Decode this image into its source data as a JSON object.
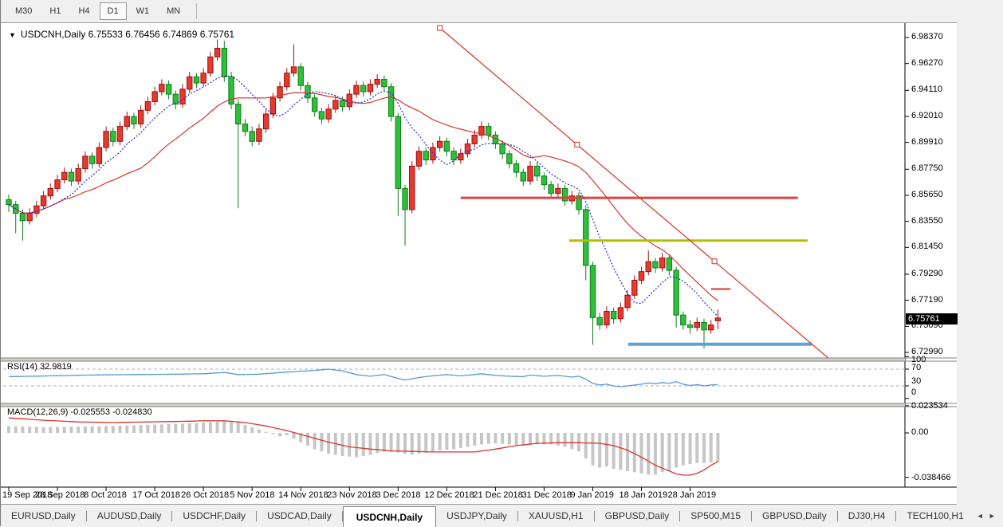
{
  "toolbar": {
    "items": [
      {
        "label": "M30",
        "active": false
      },
      {
        "label": "H1",
        "active": false
      },
      {
        "label": "H4",
        "active": false
      },
      {
        "label": "D1",
        "active": true
      },
      {
        "label": "W1",
        "active": false
      },
      {
        "label": "MN",
        "active": false
      }
    ]
  },
  "chart": {
    "title": "USDCNH,Daily  6.75533 6.76456 6.74869 6.75761",
    "dropdown_icon": "▼",
    "price_axis": {
      "labels": [
        6.9837,
        6.9627,
        6.9411,
        6.9201,
        6.8991,
        6.8775,
        6.8565,
        6.8355,
        6.8145,
        6.7929,
        6.7719,
        6.7509,
        6.7299
      ],
      "current": "6.75761"
    },
    "objects": {
      "trendline": {
        "from_day": 62,
        "from_price": 6.9914,
        "to_day": 101.5,
        "to_price": 6.8033,
        "ray": true
      },
      "hlines": [
        {
          "price": 6.8545,
          "from_day": 65,
          "to_day": 113.5,
          "color": "#e14040",
          "width": 3
        },
        {
          "price": 6.82,
          "from_day": 80.6,
          "to_day": 114.9,
          "color": "#b2bf00",
          "width": 3
        },
        {
          "price": 6.7365,
          "from_day": 89.1,
          "to_day": 115.5,
          "color": "#5aa2d8",
          "width": 4
        },
        {
          "price": 6.781,
          "from_day": 101.0,
          "to_day": 103.8,
          "color": "#d8342c",
          "width": 2
        }
      ]
    }
  },
  "panels": {
    "rsi": {
      "label": "RSI(14) 32.9819",
      "value": 32.9819,
      "axis": [
        100,
        70,
        30,
        0
      ]
    },
    "macd": {
      "label": "MACD(12,26,9) -0.025553 -0.024830",
      "value": -0.025553,
      "signal_value": -0.02483,
      "axis": [
        "0.023534",
        "0.00",
        "-0.038466"
      ]
    }
  },
  "chart_data": {
    "type": "candlestick",
    "symbol": "USDCNH",
    "timeframe": "Daily",
    "title": "USDCNH Daily with RSI(14) and MACD(12,26,9)",
    "price_range": [
      6.7299,
      6.9837
    ],
    "x_tick_labels": [
      "19 Sep 2018",
      "28 Sep 2018",
      "8 Oct 2018",
      "17 Oct 2018",
      "26 Oct 2018",
      "5 Nov 2018",
      "14 Nov 2018",
      "23 Nov 2018",
      "3 Dec 2018",
      "12 Dec 2018",
      "21 Dec 2018",
      "31 Dec 2018",
      "9 Jan 2019",
      "18 Jan 2019",
      "28 Jan 2019"
    ],
    "candles_per_tick": 7,
    "ohlc": [
      [
        6.853,
        6.857,
        6.843,
        6.849
      ],
      [
        6.849,
        6.852,
        6.826,
        6.842
      ],
      [
        6.842,
        6.845,
        6.82,
        6.836
      ],
      [
        6.836,
        6.846,
        6.833,
        6.842
      ],
      [
        6.842,
        6.852,
        6.839,
        6.848
      ],
      [
        6.848,
        6.86,
        6.845,
        6.856
      ],
      [
        6.856,
        6.866,
        6.853,
        6.862
      ],
      [
        6.862,
        6.873,
        6.859,
        6.869
      ],
      [
        6.869,
        6.879,
        6.866,
        6.875
      ],
      [
        6.875,
        6.878,
        6.864,
        6.868
      ],
      [
        6.868,
        6.882,
        6.865,
        6.878
      ],
      [
        6.878,
        6.892,
        6.875,
        6.888
      ],
      [
        6.888,
        6.891,
        6.878,
        6.882
      ],
      [
        6.882,
        6.899,
        6.879,
        6.895
      ],
      [
        6.895,
        6.912,
        6.892,
        6.908
      ],
      [
        6.908,
        6.911,
        6.896,
        6.9
      ],
      [
        6.9,
        6.916,
        6.897,
        6.912
      ],
      [
        6.912,
        6.924,
        6.909,
        6.92
      ],
      [
        6.92,
        6.923,
        6.91,
        6.914
      ],
      [
        6.914,
        6.929,
        6.911,
        6.925
      ],
      [
        6.925,
        6.936,
        6.922,
        6.932
      ],
      [
        6.932,
        6.944,
        6.929,
        6.94
      ],
      [
        6.94,
        6.95,
        6.937,
        6.946
      ],
      [
        6.946,
        6.949,
        6.934,
        6.938
      ],
      [
        6.938,
        6.941,
        6.926,
        6.93
      ],
      [
        6.93,
        6.946,
        6.927,
        6.942
      ],
      [
        6.942,
        6.956,
        6.939,
        6.952
      ],
      [
        6.952,
        6.955,
        6.943,
        6.947
      ],
      [
        6.947,
        6.959,
        6.944,
        6.955
      ],
      [
        6.955,
        6.972,
        6.952,
        6.968
      ],
      [
        6.968,
        6.982,
        6.965,
        6.975
      ],
      [
        6.975,
        6.981,
        6.948,
        6.952
      ],
      [
        6.952,
        6.956,
        6.926,
        6.93
      ],
      [
        6.93,
        6.934,
        6.846,
        6.914
      ],
      [
        6.914,
        6.918,
        6.904,
        6.908
      ],
      [
        6.908,
        6.912,
        6.896,
        6.9
      ],
      [
        6.9,
        6.914,
        6.897,
        6.91
      ],
      [
        6.91,
        6.926,
        6.907,
        6.922
      ],
      [
        6.922,
        6.939,
        6.919,
        6.935
      ],
      [
        6.935,
        6.948,
        6.932,
        6.944
      ],
      [
        6.944,
        6.959,
        6.941,
        6.955
      ],
      [
        6.955,
        6.978,
        6.952,
        6.96
      ],
      [
        6.96,
        6.963,
        6.941,
        6.945
      ],
      [
        6.945,
        6.948,
        6.931,
        6.935
      ],
      [
        6.935,
        6.938,
        6.92,
        6.924
      ],
      [
        6.924,
        6.927,
        6.914,
        6.918
      ],
      [
        6.918,
        6.93,
        6.915,
        6.926
      ],
      [
        6.926,
        6.937,
        6.923,
        6.933
      ],
      [
        6.933,
        6.936,
        6.924,
        6.928
      ],
      [
        6.928,
        6.942,
        6.925,
        6.938
      ],
      [
        6.938,
        6.949,
        6.935,
        6.945
      ],
      [
        6.945,
        6.948,
        6.936,
        6.94
      ],
      [
        6.94,
        6.95,
        6.937,
        6.946
      ],
      [
        6.946,
        6.954,
        6.943,
        6.95
      ],
      [
        6.95,
        6.953,
        6.94,
        6.944
      ],
      [
        6.944,
        6.947,
        6.916,
        6.92
      ],
      [
        6.92,
        6.923,
        6.84,
        6.862
      ],
      [
        6.862,
        6.865,
        6.816,
        6.845
      ],
      [
        6.845,
        6.884,
        6.842,
        6.88
      ],
      [
        6.88,
        6.896,
        6.877,
        6.892
      ],
      [
        6.892,
        6.895,
        6.881,
        6.885
      ],
      [
        6.885,
        6.899,
        6.882,
        6.895
      ],
      [
        6.895,
        6.904,
        6.892,
        6.9
      ],
      [
        6.9,
        6.903,
        6.888,
        6.892
      ],
      [
        6.892,
        6.895,
        6.881,
        6.885
      ],
      [
        6.885,
        6.894,
        6.882,
        6.89
      ],
      [
        6.89,
        6.902,
        6.887,
        6.898
      ],
      [
        6.898,
        6.909,
        6.895,
        6.905
      ],
      [
        6.905,
        6.916,
        6.902,
        6.912
      ],
      [
        6.912,
        6.915,
        6.901,
        6.905
      ],
      [
        6.905,
        6.908,
        6.894,
        6.898
      ],
      [
        6.898,
        6.901,
        6.886,
        6.89
      ],
      [
        6.89,
        6.893,
        6.878,
        6.882
      ],
      [
        6.882,
        6.885,
        6.871,
        6.875
      ],
      [
        6.875,
        6.878,
        6.864,
        6.868
      ],
      [
        6.868,
        6.884,
        6.865,
        6.88
      ],
      [
        6.88,
        6.883,
        6.868,
        6.872
      ],
      [
        6.872,
        6.875,
        6.861,
        6.865
      ],
      [
        6.865,
        6.868,
        6.854,
        6.858
      ],
      [
        6.858,
        6.866,
        6.855,
        6.862
      ],
      [
        6.862,
        6.865,
        6.848,
        6.852
      ],
      [
        6.852,
        6.86,
        6.849,
        6.856
      ],
      [
        6.856,
        6.859,
        6.841,
        6.845
      ],
      [
        6.845,
        6.848,
        6.788,
        6.8
      ],
      [
        6.8,
        6.803,
        6.736,
        6.758
      ],
      [
        6.758,
        6.762,
        6.748,
        6.752
      ],
      [
        6.752,
        6.767,
        6.749,
        6.763
      ],
      [
        6.763,
        6.766,
        6.753,
        6.757
      ],
      [
        6.757,
        6.77,
        6.754,
        6.766
      ],
      [
        6.766,
        6.78,
        6.763,
        6.776
      ],
      [
        6.776,
        6.792,
        6.773,
        6.788
      ],
      [
        6.788,
        6.799,
        6.785,
        6.795
      ],
      [
        6.795,
        6.812,
        6.792,
        6.803
      ],
      [
        6.803,
        6.806,
        6.794,
        6.798
      ],
      [
        6.798,
        6.81,
        6.795,
        6.806
      ],
      [
        6.806,
        6.809,
        6.792,
        6.796
      ],
      [
        6.796,
        6.799,
        6.75,
        6.76
      ],
      [
        6.76,
        6.763,
        6.748,
        6.752
      ],
      [
        6.752,
        6.756,
        6.745,
        6.75
      ],
      [
        6.75,
        6.758,
        6.747,
        6.754
      ],
      [
        6.754,
        6.757,
        6.733,
        6.748
      ],
      [
        6.748,
        6.756,
        6.745,
        6.752
      ],
      [
        6.75533,
        6.76456,
        6.74869,
        6.75761
      ]
    ],
    "ma_fast_period": 8,
    "ma_slow_period": 20,
    "rsi_points": [
      [
        0,
        52
      ],
      [
        6,
        54
      ],
      [
        12,
        56
      ],
      [
        18,
        57
      ],
      [
        24,
        58
      ],
      [
        28,
        59
      ],
      [
        31,
        62
      ],
      [
        33,
        57
      ],
      [
        36,
        58
      ],
      [
        40,
        63
      ],
      [
        44,
        67
      ],
      [
        46,
        70
      ],
      [
        48,
        66
      ],
      [
        50,
        57
      ],
      [
        52,
        53
      ],
      [
        54,
        57
      ],
      [
        56,
        48
      ],
      [
        57,
        44
      ],
      [
        59,
        50
      ],
      [
        61,
        54
      ],
      [
        63,
        57
      ],
      [
        65,
        54
      ],
      [
        67,
        57
      ],
      [
        68,
        59
      ],
      [
        70,
        55
      ],
      [
        72,
        53
      ],
      [
        74,
        52
      ],
      [
        75,
        56
      ],
      [
        77,
        53
      ],
      [
        79,
        55
      ],
      [
        81,
        51
      ],
      [
        82,
        53
      ],
      [
        83,
        46
      ],
      [
        84,
        36
      ],
      [
        85,
        32
      ],
      [
        86,
        34
      ],
      [
        87,
        30
      ],
      [
        88,
        28
      ],
      [
        89,
        30
      ],
      [
        90,
        32
      ],
      [
        91,
        34
      ],
      [
        92,
        37
      ],
      [
        93,
        35
      ],
      [
        94,
        38
      ],
      [
        95,
        36
      ],
      [
        96,
        40
      ],
      [
        97,
        34
      ],
      [
        98,
        31
      ],
      [
        99,
        33
      ],
      [
        100,
        30
      ],
      [
        101,
        32
      ],
      [
        102,
        32.98
      ]
    ],
    "macd_hist_points": [
      [
        0,
        0.006
      ],
      [
        5,
        0.005
      ],
      [
        10,
        0.0055
      ],
      [
        15,
        0.006
      ],
      [
        20,
        0.007
      ],
      [
        25,
        0.008
      ],
      [
        28,
        0.009
      ],
      [
        31,
        0.01
      ],
      [
        33,
        0.009
      ],
      [
        35,
        0.005
      ],
      [
        37,
        0.001
      ],
      [
        39,
        -0.003
      ],
      [
        40,
        -0.002
      ],
      [
        42,
        -0.008
      ],
      [
        44,
        -0.014
      ],
      [
        46,
        -0.018
      ],
      [
        48,
        -0.02
      ],
      [
        50,
        -0.021
      ],
      [
        52,
        -0.019
      ],
      [
        54,
        -0.016
      ],
      [
        56,
        -0.017
      ],
      [
        58,
        -0.019
      ],
      [
        60,
        -0.017
      ],
      [
        62,
        -0.015
      ],
      [
        64,
        -0.014
      ],
      [
        66,
        -0.012
      ],
      [
        68,
        -0.01
      ],
      [
        70,
        -0.009
      ],
      [
        72,
        -0.01
      ],
      [
        74,
        -0.011
      ],
      [
        76,
        -0.01
      ],
      [
        78,
        -0.01
      ],
      [
        80,
        -0.012
      ],
      [
        82,
        -0.016
      ],
      [
        83,
        -0.022
      ],
      [
        84,
        -0.028
      ],
      [
        85,
        -0.03
      ],
      [
        86,
        -0.029
      ],
      [
        87,
        -0.031
      ],
      [
        88,
        -0.032
      ],
      [
        89,
        -0.033
      ],
      [
        90,
        -0.034
      ],
      [
        91,
        -0.035
      ],
      [
        92,
        -0.036
      ],
      [
        93,
        -0.036
      ],
      [
        94,
        -0.034
      ],
      [
        95,
        -0.033
      ],
      [
        96,
        -0.03
      ],
      [
        97,
        -0.028
      ],
      [
        98,
        -0.027
      ],
      [
        99,
        -0.026
      ],
      [
        100,
        -0.026
      ],
      [
        101,
        -0.0255
      ],
      [
        102,
        -0.025553
      ]
    ],
    "macd_signal_points": [
      [
        0,
        0.013
      ],
      [
        5,
        0.011
      ],
      [
        10,
        0.0095
      ],
      [
        15,
        0.009
      ],
      [
        20,
        0.0095
      ],
      [
        25,
        0.01
      ],
      [
        28,
        0.0105
      ],
      [
        31,
        0.0105
      ],
      [
        34,
        0.009
      ],
      [
        37,
        0.006
      ],
      [
        40,
        0.002
      ],
      [
        43,
        -0.003
      ],
      [
        46,
        -0.008
      ],
      [
        49,
        -0.012
      ],
      [
        52,
        -0.014
      ],
      [
        55,
        -0.0155
      ],
      [
        58,
        -0.016
      ],
      [
        61,
        -0.0165
      ],
      [
        64,
        -0.0165
      ],
      [
        67,
        -0.0165
      ],
      [
        70,
        -0.014
      ],
      [
        73,
        -0.011
      ],
      [
        76,
        -0.009
      ],
      [
        79,
        -0.0085
      ],
      [
        82,
        -0.0085
      ],
      [
        85,
        -0.009
      ],
      [
        87,
        -0.011
      ],
      [
        89,
        -0.015
      ],
      [
        91,
        -0.021
      ],
      [
        93,
        -0.028
      ],
      [
        95,
        -0.033
      ],
      [
        96,
        -0.0355
      ],
      [
        97,
        -0.0365
      ],
      [
        98,
        -0.0365
      ],
      [
        99,
        -0.035
      ],
      [
        100,
        -0.032
      ],
      [
        101,
        -0.028
      ],
      [
        102,
        -0.02483
      ]
    ]
  },
  "tabs": {
    "items": [
      {
        "label": "EURUSD,Daily",
        "active": false
      },
      {
        "label": "AUDUSD,Daily",
        "active": false
      },
      {
        "label": "USDCHF,Daily",
        "active": false
      },
      {
        "label": "USDCAD,Daily",
        "active": false
      },
      {
        "label": "USDCNH,Daily",
        "active": true
      },
      {
        "label": "USDJPY,Daily",
        "active": false
      },
      {
        "label": "XAUUSD,H1",
        "active": false
      },
      {
        "label": "GBPUSD,Daily",
        "active": false
      },
      {
        "label": "SP500,M15",
        "active": false
      },
      {
        "label": "GBPUSD,Daily",
        "active": false
      },
      {
        "label": "DJ30,H4",
        "active": false
      },
      {
        "label": "TECH100,H1",
        "active": false
      }
    ],
    "scroll_left_icon": "◄",
    "scroll_right_icon": "►"
  },
  "colors": {
    "bull": "#e8392e",
    "bull_border": "#9c0f0f",
    "bear": "#2fbf3a",
    "bear_border": "#0f7d1c",
    "ma_fast": "#2b2bd5",
    "ma_slow": "#d8342c",
    "rsi_line": "#5599d6",
    "macd_hist": "#c6c6c6",
    "macd_signal": "#d8342c",
    "accent_red": "#e14040",
    "accent_olive": "#b2bf00",
    "accent_blue": "#5aa2d8"
  }
}
